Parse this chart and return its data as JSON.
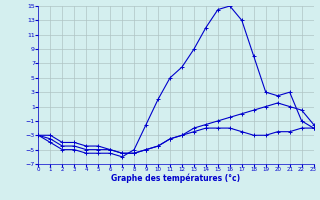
{
  "xlabel": "Graphe des températures (°c)",
  "background_color": "#d4efef",
  "grid_color": "#b0c4c4",
  "line_color": "#0000cc",
  "xlim": [
    0,
    23
  ],
  "ylim": [
    -7,
    15
  ],
  "xtick_vals": [
    0,
    1,
    2,
    3,
    4,
    5,
    6,
    7,
    8,
    9,
    10,
    11,
    12,
    13,
    14,
    15,
    16,
    17,
    18,
    19,
    20,
    21,
    22,
    23
  ],
  "ytick_vals": [
    -7,
    -5,
    -3,
    -1,
    1,
    3,
    5,
    7,
    9,
    11,
    13,
    15
  ],
  "curve1_x": [
    0,
    1,
    2,
    3,
    4,
    5,
    6,
    7,
    8,
    9,
    10,
    11,
    12,
    13,
    14,
    15,
    16,
    17,
    18,
    19,
    20,
    21,
    22,
    23
  ],
  "curve1_y": [
    -3,
    -4,
    -5,
    -5,
    -5.5,
    -5.5,
    -5.5,
    -6,
    -5,
    -1.5,
    2,
    5,
    6.5,
    9,
    12,
    14.5,
    15,
    13,
    8,
    3,
    2.5,
    3,
    -1,
    -2
  ],
  "curve2_x": [
    0,
    1,
    2,
    3,
    4,
    5,
    6,
    7,
    8,
    9,
    10,
    11,
    12,
    13,
    14,
    15,
    16,
    17,
    18,
    19,
    20,
    21,
    22,
    23
  ],
  "curve2_y": [
    -3,
    -3.5,
    -4.5,
    -4.5,
    -5,
    -5,
    -5,
    -5.5,
    -5.5,
    -5,
    -4.5,
    -3.5,
    -3,
    -2,
    -1.5,
    -1,
    -0.5,
    0,
    0.5,
    1,
    1.5,
    1,
    0.5,
    -1.5
  ],
  "curve3_x": [
    0,
    1,
    2,
    3,
    4,
    5,
    6,
    7,
    8,
    9,
    10,
    11,
    12,
    13,
    14,
    15,
    16,
    17,
    18,
    19,
    20,
    21,
    22,
    23
  ],
  "curve3_y": [
    -3,
    -3,
    -4,
    -4,
    -4.5,
    -4.5,
    -5,
    -5.5,
    -5.5,
    -5,
    -4.5,
    -3.5,
    -3,
    -2.5,
    -2,
    -2,
    -2,
    -2.5,
    -3,
    -3,
    -2.5,
    -2.5,
    -2,
    -2
  ]
}
